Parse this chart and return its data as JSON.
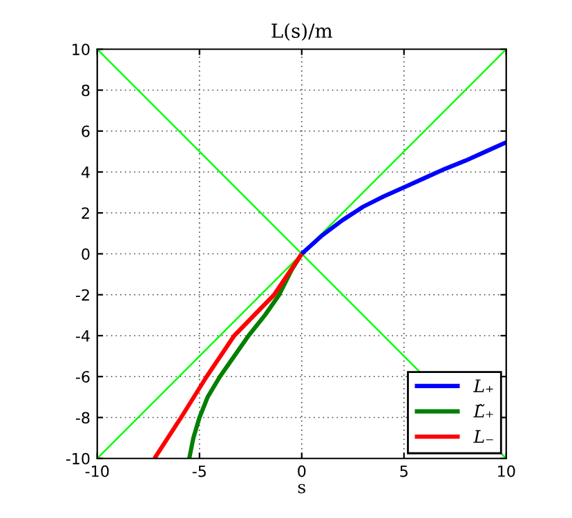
{
  "chart_data": {
    "type": "line",
    "title": "L(s)/m",
    "xlabel": "s",
    "xlim": [
      -10,
      10
    ],
    "ylim": [
      -10,
      10
    ],
    "xticks": [
      -10,
      -5,
      0,
      5,
      10
    ],
    "yticks": [
      -10,
      -8,
      -6,
      -4,
      -2,
      0,
      2,
      4,
      6,
      8,
      10
    ],
    "grid": true,
    "legend": "bottom right",
    "series": [
      {
        "color": "#00ff00",
        "x": [
          -10,
          10
        ],
        "values": [
          -10,
          10
        ]
      },
      {
        "color": "#00ff00",
        "x": [
          -10,
          10
        ],
        "values": [
          10,
          -10
        ]
      },
      {
        "name": "L₊",
        "color": "#0000ff",
        "x": [
          0,
          1,
          2,
          3,
          4,
          5,
          6,
          7,
          8,
          9,
          10
        ],
        "values": [
          0,
          0.9,
          1.65,
          2.3,
          2.8,
          3.25,
          3.7,
          4.15,
          4.55,
          5.0,
          5.45
        ]
      },
      {
        "name": "L̃₊",
        "color": "#008000",
        "x": [
          0,
          -0.5,
          -1.1,
          -1.8,
          -2.6,
          -3.3,
          -4.0,
          -4.6,
          -5.0,
          -5.3,
          -5.5
        ],
        "values": [
          0,
          -0.8,
          -2,
          -3,
          -4,
          -5,
          -6,
          -7,
          -8,
          -9,
          -10
        ]
      },
      {
        "name": "L₋",
        "color": "#ff0000",
        "x": [
          0,
          -1.35,
          -3.3,
          -4.65,
          -5.9,
          -7.2
        ],
        "values": [
          0,
          -2,
          -4,
          -6,
          -8,
          -10
        ]
      }
    ]
  }
}
